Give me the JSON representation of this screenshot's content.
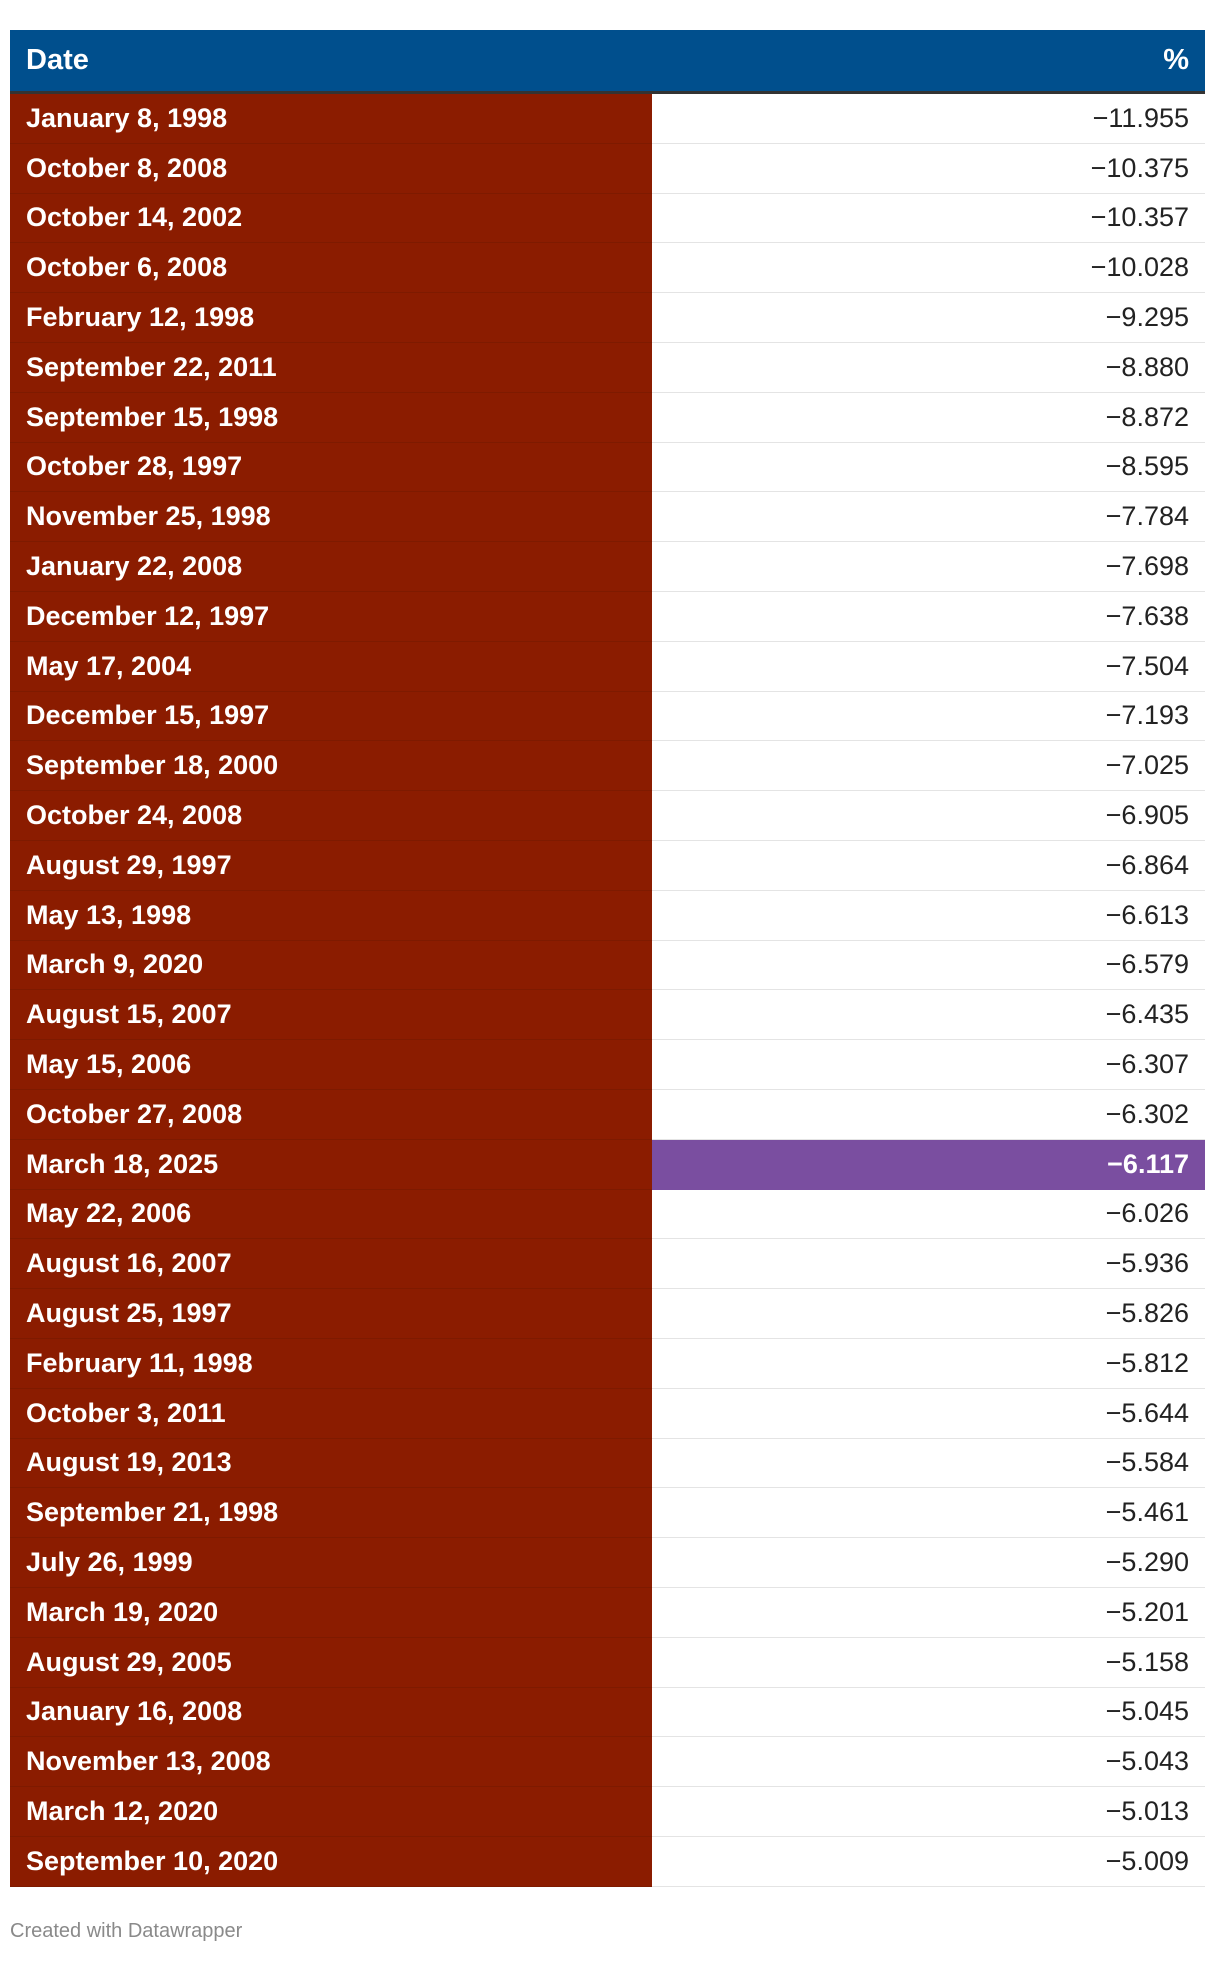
{
  "table": {
    "headers": {
      "date": "Date",
      "pct": "%"
    },
    "highlight_color": "#7a4ea0",
    "date_cell_color": "#8b1c00",
    "header_color": "#004f8d"
  },
  "footer": {
    "credit": "Created with Datawrapper"
  },
  "chart_data": {
    "type": "table",
    "columns": [
      "Date",
      "%"
    ],
    "rows": [
      {
        "date": "January 8, 1998",
        "pct": "−11.955"
      },
      {
        "date": "October 8, 2008",
        "pct": "−10.375"
      },
      {
        "date": "October 14, 2002",
        "pct": "−10.357"
      },
      {
        "date": "October 6, 2008",
        "pct": "−10.028"
      },
      {
        "date": "February 12, 1998",
        "pct": "−9.295"
      },
      {
        "date": "September 22, 2011",
        "pct": "−8.880"
      },
      {
        "date": "September 15, 1998",
        "pct": "−8.872"
      },
      {
        "date": "October 28, 1997",
        "pct": "−8.595"
      },
      {
        "date": "November 25, 1998",
        "pct": "−7.784"
      },
      {
        "date": "January 22, 2008",
        "pct": "−7.698"
      },
      {
        "date": "December 12, 1997",
        "pct": "−7.638"
      },
      {
        "date": "May 17, 2004",
        "pct": "−7.504"
      },
      {
        "date": "December 15, 1997",
        "pct": "−7.193"
      },
      {
        "date": "September 18, 2000",
        "pct": "−7.025"
      },
      {
        "date": "October 24, 2008",
        "pct": "−6.905"
      },
      {
        "date": "August 29, 1997",
        "pct": "−6.864"
      },
      {
        "date": "May 13, 1998",
        "pct": "−6.613"
      },
      {
        "date": "March 9, 2020",
        "pct": "−6.579"
      },
      {
        "date": "August 15, 2007",
        "pct": "−6.435"
      },
      {
        "date": "May 15, 2006",
        "pct": "−6.307"
      },
      {
        "date": "October 27, 2008",
        "pct": "−6.302"
      },
      {
        "date": "March 18, 2025",
        "pct": "−6.117",
        "highlight": true
      },
      {
        "date": "May 22, 2006",
        "pct": "−6.026"
      },
      {
        "date": "August 16, 2007",
        "pct": "−5.936"
      },
      {
        "date": "August 25, 1997",
        "pct": "−5.826"
      },
      {
        "date": "February 11, 1998",
        "pct": "−5.812"
      },
      {
        "date": "October 3, 2011",
        "pct": "−5.644"
      },
      {
        "date": "August 19, 2013",
        "pct": "−5.584"
      },
      {
        "date": "September 21, 1998",
        "pct": "−5.461"
      },
      {
        "date": "July 26, 1999",
        "pct": "−5.290"
      },
      {
        "date": "March 19, 2020",
        "pct": "−5.201"
      },
      {
        "date": "August 29, 2005",
        "pct": "−5.158"
      },
      {
        "date": "January 16, 2008",
        "pct": "−5.045"
      },
      {
        "date": "November 13, 2008",
        "pct": "−5.043"
      },
      {
        "date": "March 12, 2020",
        "pct": "−5.013"
      },
      {
        "date": "September 10, 2020",
        "pct": "−5.009"
      }
    ]
  }
}
